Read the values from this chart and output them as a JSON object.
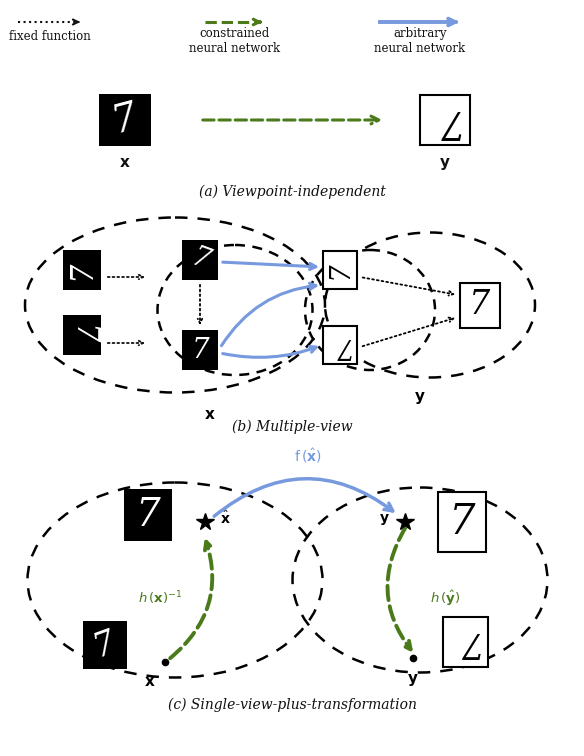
{
  "green_color": "#4a7a1a",
  "blue_color": "#7799dd",
  "black_color": "#111111",
  "bg_color": "#ffffff",
  "section_a_label": "(a) Viewpoint-independent",
  "section_b_label": "(b) Multiple-view",
  "section_c_label": "(c) Single-view-plus-transformation"
}
